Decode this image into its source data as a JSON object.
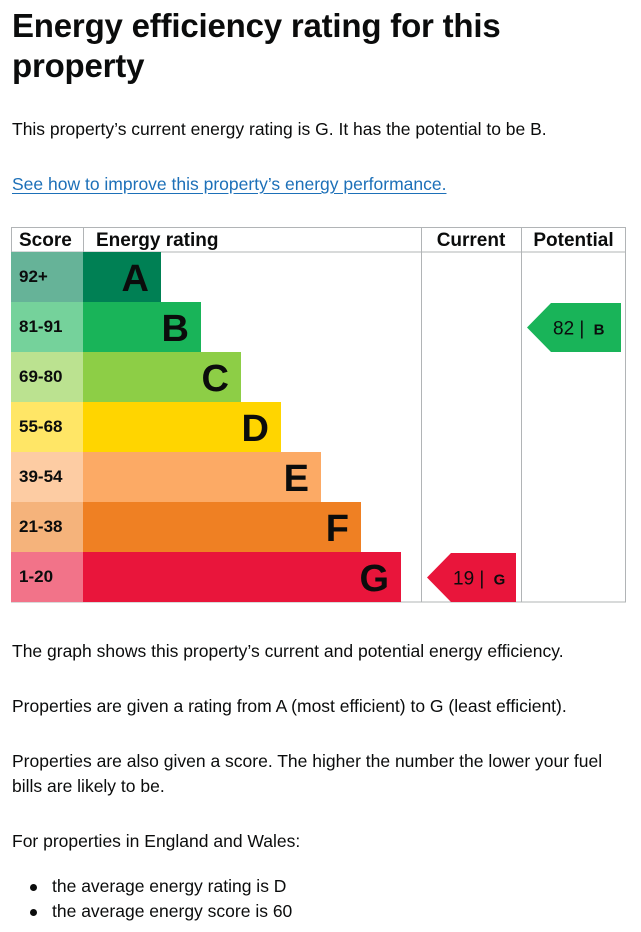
{
  "page": {
    "title": "Energy efficiency rating for this property",
    "summary": "This property’s current energy rating is G. It has the potential to be B.",
    "improve_link": "See how to improve this property’s energy performance.",
    "paragraphs": [
      "The graph shows this property’s current and potential energy efficiency.",
      "Properties are given a rating from A (most efficient) to G (least efficient).",
      "Properties are also given a score. The higher the number the lower your fuel bills are likely to be.",
      "For properties in England and Wales:"
    ],
    "facts": [
      "the average energy rating is D",
      "the average energy score is 60"
    ]
  },
  "chart_data": {
    "type": "bar",
    "title": "Energy efficiency rating for this property",
    "columns": [
      "Score",
      "Energy rating",
      "Current",
      "Potential"
    ],
    "bands": [
      {
        "letter": "A",
        "range": "92+",
        "color": "#008054",
        "score_bg": "#66b398"
      },
      {
        "letter": "B",
        "range": "81-91",
        "color": "#19b459",
        "score_bg": "#75d29b"
      },
      {
        "letter": "C",
        "range": "69-80",
        "color": "#8dce46",
        "score_bg": "#bbe290"
      },
      {
        "letter": "D",
        "range": "55-68",
        "color": "#ffd500",
        "score_bg": "#ffe666"
      },
      {
        "letter": "E",
        "range": "39-54",
        "color": "#fcaa65",
        "score_bg": "#fdcca3"
      },
      {
        "letter": "F",
        "range": "21-38",
        "color": "#ef8023",
        "score_bg": "#f5b37b"
      },
      {
        "letter": "G",
        "range": "1-20",
        "color": "#e9153b",
        "score_bg": "#f27389"
      }
    ],
    "current": {
      "score": 19,
      "band": "G",
      "label": "19 | ",
      "letter": "G"
    },
    "potential": {
      "score": 82,
      "band": "B",
      "label": "82 | ",
      "letter": "B"
    }
  }
}
